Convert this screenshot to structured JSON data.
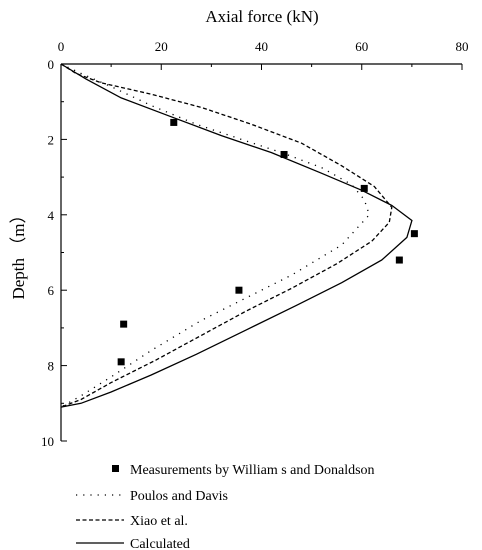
{
  "chart_data": {
    "type": "line",
    "title": "",
    "xlabel": "Axial force (kN)",
    "ylabel": "Depth （m）",
    "xlim": [
      0,
      80
    ],
    "ylim": [
      0,
      10
    ],
    "x_ticks": [
      "0",
      "20",
      "40",
      "60",
      "80"
    ],
    "y_ticks": [
      "0",
      "2",
      "4",
      "6",
      "8",
      "10"
    ],
    "y_inverted": true,
    "x_axis_position": "top",
    "grid": false,
    "legend_position": "bottom",
    "series": [
      {
        "name": "Measurements by William s and Donaldson",
        "style": "square-markers",
        "color": "#000000",
        "points": [
          [
            22.5,
            1.55
          ],
          [
            44.5,
            2.4
          ],
          [
            60.5,
            3.3
          ],
          [
            70.5,
            4.5
          ],
          [
            67.5,
            5.2
          ],
          [
            35.5,
            6.0
          ],
          [
            12.5,
            6.9
          ],
          [
            12.0,
            7.9
          ]
        ]
      },
      {
        "name": "Poulos and Davis",
        "style": "dotted",
        "color": "#000000",
        "points": [
          [
            0,
            0
          ],
          [
            4,
            0.25
          ],
          [
            10,
            0.6
          ],
          [
            18,
            1.1
          ],
          [
            27,
            1.6
          ],
          [
            36,
            2.0
          ],
          [
            44,
            2.35
          ],
          [
            52,
            2.75
          ],
          [
            58,
            3.2
          ],
          [
            60.5,
            3.6
          ],
          [
            61.5,
            4.0
          ],
          [
            56,
            4.8
          ],
          [
            46,
            5.6
          ],
          [
            37,
            6.2
          ],
          [
            28,
            6.8
          ],
          [
            18,
            7.6
          ],
          [
            10,
            8.3
          ],
          [
            4,
            8.8
          ],
          [
            0,
            9.1
          ]
        ]
      },
      {
        "name": "Xiao et al.",
        "style": "dashed",
        "color": "#000000",
        "points": [
          [
            0,
            0
          ],
          [
            3,
            0.25
          ],
          [
            8,
            0.5
          ],
          [
            18,
            0.8
          ],
          [
            28,
            1.15
          ],
          [
            38,
            1.6
          ],
          [
            48,
            2.1
          ],
          [
            56,
            2.7
          ],
          [
            62.5,
            3.25
          ],
          [
            66,
            3.8
          ],
          [
            65.5,
            4.2
          ],
          [
            62,
            4.7
          ],
          [
            55,
            5.3
          ],
          [
            46,
            5.95
          ],
          [
            37,
            6.55
          ],
          [
            28,
            7.2
          ],
          [
            19,
            7.85
          ],
          [
            10,
            8.45
          ],
          [
            4,
            8.9
          ],
          [
            0,
            9.1
          ]
        ]
      },
      {
        "name": "Calculated",
        "style": "solid",
        "color": "#000000",
        "points": [
          [
            0,
            0
          ],
          [
            5,
            0.4
          ],
          [
            12,
            0.9
          ],
          [
            22,
            1.4
          ],
          [
            32,
            1.9
          ],
          [
            42,
            2.35
          ],
          [
            52,
            2.9
          ],
          [
            60,
            3.35
          ],
          [
            66,
            3.75
          ],
          [
            70,
            4.15
          ],
          [
            69,
            4.6
          ],
          [
            64,
            5.2
          ],
          [
            56,
            5.8
          ],
          [
            47,
            6.4
          ],
          [
            37,
            7.05
          ],
          [
            27,
            7.7
          ],
          [
            18,
            8.25
          ],
          [
            10,
            8.7
          ],
          [
            4,
            9.0
          ],
          [
            0,
            9.1
          ]
        ]
      }
    ]
  }
}
